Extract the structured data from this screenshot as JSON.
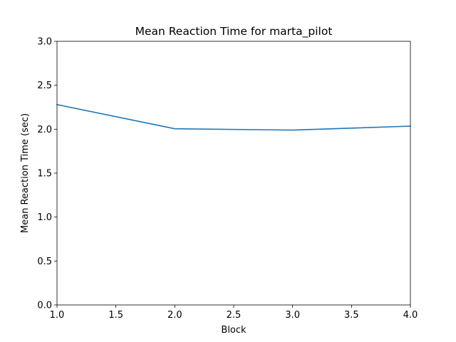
{
  "chart_data": {
    "type": "line",
    "title": "Mean Reaction Time for marta_pilot",
    "xlabel": "Block",
    "ylabel": "Mean Reaction Time (sec)",
    "xlim": [
      1.0,
      4.0
    ],
    "ylim": [
      0.0,
      3.0
    ],
    "x_ticks": [
      "1.0",
      "1.5",
      "2.0",
      "2.5",
      "3.0",
      "3.5",
      "4.0"
    ],
    "y_ticks": [
      "0.0",
      "0.5",
      "1.0",
      "1.5",
      "2.0",
      "2.5",
      "3.0"
    ],
    "grid": false,
    "series": [
      {
        "color": "#1f77b4",
        "x": [
          1,
          2,
          3,
          4
        ],
        "y": [
          2.28,
          2.005,
          1.99,
          2.035
        ]
      }
    ]
  }
}
